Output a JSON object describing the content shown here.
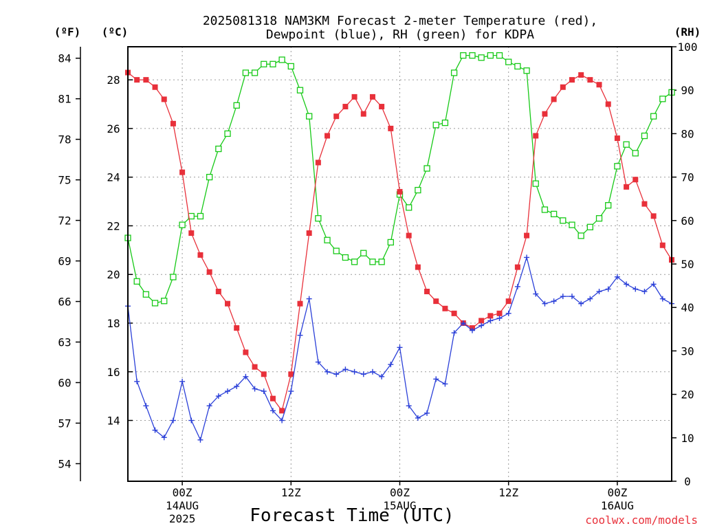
{
  "chart_data": {
    "type": "line",
    "title_line1": "2025081318 NAM3KM Forecast 2-meter Temperature (red),",
    "title_line2": "Dewpoint (blue), RH (green) for KDPA",
    "xlabel": "Forecast Time (UTC)",
    "credit": "coolwx.com/models",
    "units": {
      "left_f": "(ºF)",
      "left_c": "(ºC)",
      "right_rh": "(RH)"
    },
    "x_start_hour": 18,
    "x_range_hours": [
      0,
      60
    ],
    "x_ticks": [
      {
        "hour": 6,
        "label": "00Z",
        "sub1": "14AUG",
        "sub2": "2025"
      },
      {
        "hour": 18,
        "label": "12Z",
        "sub1": "",
        "sub2": ""
      },
      {
        "hour": 30,
        "label": "00Z",
        "sub1": "15AUG",
        "sub2": ""
      },
      {
        "hour": 42,
        "label": "12Z",
        "sub1": "",
        "sub2": ""
      },
      {
        "hour": 54,
        "label": "00Z",
        "sub1": "16AUG",
        "sub2": ""
      }
    ],
    "y_celsius_range": [
      11.5,
      29.36
    ],
    "y_celsius_ticks": [
      "14",
      "16",
      "18",
      "20",
      "22",
      "24",
      "26",
      "28"
    ],
    "y_fahrenheit_ticks": [
      "54",
      "57",
      "60",
      "63",
      "66",
      "69",
      "72",
      "75",
      "78",
      "81",
      "84"
    ],
    "y_rh_range": [
      0,
      100
    ],
    "y_rh_ticks": [
      "0",
      "10",
      "20",
      "30",
      "40",
      "50",
      "60",
      "70",
      "80",
      "90",
      "100"
    ],
    "colors": {
      "temperature": "#e8303a",
      "dewpoint": "#2a3fd8",
      "rh": "#16c916"
    },
    "series": [
      {
        "name": "Temperature",
        "unit": "C",
        "marker": "filled-square",
        "x": [
          0,
          1,
          2,
          3,
          4,
          5,
          6,
          7,
          8,
          9,
          10,
          11,
          12,
          13,
          14,
          15,
          16,
          17,
          18,
          19,
          20,
          21,
          22,
          23,
          24,
          25,
          26,
          27,
          28,
          29,
          30,
          31,
          32,
          33,
          34,
          35,
          36,
          37,
          38,
          39,
          40,
          41,
          42,
          43,
          44,
          45,
          46,
          47,
          48,
          49,
          50,
          51,
          52,
          53,
          54,
          55,
          56,
          57,
          58,
          59,
          60
        ],
        "values": [
          28.3,
          28.0,
          28.0,
          27.7,
          27.2,
          26.2,
          24.2,
          21.7,
          20.8,
          20.1,
          19.3,
          18.8,
          17.8,
          16.8,
          16.2,
          15.9,
          14.9,
          14.4,
          15.9,
          18.8,
          21.7,
          24.6,
          25.7,
          26.5,
          26.9,
          27.3,
          26.6,
          27.3,
          26.9,
          26.0,
          23.4,
          21.6,
          20.3,
          19.3,
          18.9,
          18.6,
          18.4,
          18.0,
          17.8,
          18.1,
          18.3,
          18.4,
          18.9,
          20.3,
          21.6,
          25.7,
          26.6,
          27.2,
          27.7,
          28.0,
          28.2,
          28.0,
          27.8,
          27.0,
          25.6,
          23.6,
          23.9,
          22.9,
          22.4,
          21.2,
          20.6
        ]
      },
      {
        "name": "Dewpoint",
        "unit": "C",
        "marker": "plus",
        "x": [
          0,
          1,
          2,
          3,
          4,
          5,
          6,
          7,
          8,
          9,
          10,
          11,
          12,
          13,
          14,
          15,
          16,
          17,
          18,
          19,
          20,
          21,
          22,
          23,
          24,
          25,
          26,
          27,
          28,
          29,
          30,
          31,
          32,
          33,
          34,
          35,
          36,
          37,
          38,
          39,
          40,
          41,
          42,
          43,
          44,
          45,
          46,
          47,
          48,
          49,
          50,
          51,
          52,
          53,
          54,
          55,
          56,
          57,
          58,
          59,
          60
        ],
        "values": [
          18.7,
          15.6,
          14.6,
          13.6,
          13.3,
          14.0,
          15.6,
          14.0,
          13.2,
          14.6,
          15.0,
          15.2,
          15.4,
          15.8,
          15.3,
          15.2,
          14.4,
          14.0,
          15.2,
          17.5,
          19.0,
          16.4,
          16.0,
          15.9,
          16.1,
          16.0,
          15.9,
          16.0,
          15.8,
          16.3,
          17.0,
          14.6,
          14.1,
          14.3,
          15.7,
          15.5,
          17.6,
          18.0,
          17.7,
          17.9,
          18.1,
          18.2,
          18.4,
          19.5,
          20.7,
          19.2,
          18.8,
          18.9,
          19.1,
          19.1,
          18.8,
          19.0,
          19.3,
          19.4,
          19.9,
          19.6,
          19.4,
          19.3,
          19.6,
          19.0,
          18.8
        ]
      },
      {
        "name": "RH",
        "unit": "%",
        "marker": "open-square",
        "x": [
          0,
          1,
          2,
          3,
          4,
          5,
          6,
          7,
          8,
          9,
          10,
          11,
          12,
          13,
          14,
          15,
          16,
          17,
          18,
          19,
          20,
          21,
          22,
          23,
          24,
          25,
          26,
          27,
          28,
          29,
          30,
          31,
          32,
          33,
          34,
          35,
          36,
          37,
          38,
          39,
          40,
          41,
          42,
          43,
          44,
          45,
          46,
          47,
          48,
          49,
          50,
          51,
          52,
          53,
          54,
          55,
          56,
          57,
          58,
          59,
          60
        ],
        "values": [
          56,
          46,
          43,
          41,
          41.5,
          47,
          59,
          61,
          61,
          70,
          76.5,
          80,
          86.5,
          94,
          94,
          96,
          96,
          97,
          95.5,
          90,
          84,
          60.5,
          55.5,
          53,
          51.5,
          50.5,
          52.5,
          50.5,
          50.5,
          55,
          66,
          63,
          67,
          72,
          82,
          82.5,
          94,
          98,
          98,
          97.5,
          98,
          98,
          96.5,
          95.5,
          94.5,
          68.5,
          62.5,
          61.5,
          60,
          59,
          56.5,
          58.5,
          60.5,
          63.5,
          72.5,
          77.5,
          75.5,
          79.5,
          84,
          88,
          89.5
        ]
      }
    ]
  }
}
